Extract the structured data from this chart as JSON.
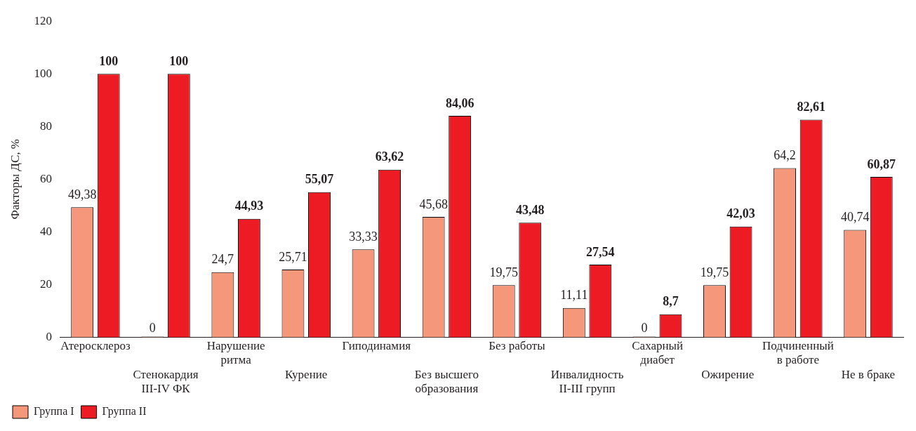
{
  "chart_data": {
    "type": "bar",
    "ylabel": "Факторы ДС, %",
    "categories": [
      "Атеросклероз",
      "Стенокардия\nIII-IV ФК",
      "Нарушение\nритма",
      "Курение",
      "Гиподинамия",
      "Без высшего\nобразования",
      "Без работы",
      "Инвалидность\nII-III групп",
      "Сахарный\nдиабет",
      "Ожирение",
      "Подчиненный\nв работе",
      "Не в браке"
    ],
    "series": [
      {
        "name": "Группа I",
        "color": "#f4977a",
        "values": [
          49.38,
          0,
          24.7,
          25.71,
          33.33,
          45.68,
          19.75,
          11.11,
          0,
          19.75,
          64.2,
          40.74
        ],
        "value_labels": [
          "49,38",
          "0",
          "24,7",
          "25,71",
          "33,33",
          "45,68",
          "19,75",
          "11,11",
          "0",
          "19,75",
          "64,2",
          "40,74"
        ]
      },
      {
        "name": "Группа II",
        "color": "#ed1c24",
        "values": [
          100,
          100,
          44.93,
          55.07,
          63.62,
          84.06,
          43.48,
          27.54,
          8.7,
          42.03,
          82.61,
          60.87
        ],
        "value_labels": [
          "100",
          "100",
          "44,93",
          "55,07",
          "63,62",
          "84,06",
          "43,48",
          "27,54",
          "8,7",
          "42,03",
          "82,61",
          "60,87"
        ]
      }
    ],
    "ylim": [
      0,
      120
    ],
    "yticks": [
      0,
      20,
      40,
      60,
      80,
      100,
      120
    ],
    "grid": false,
    "legend": "bottom left"
  }
}
